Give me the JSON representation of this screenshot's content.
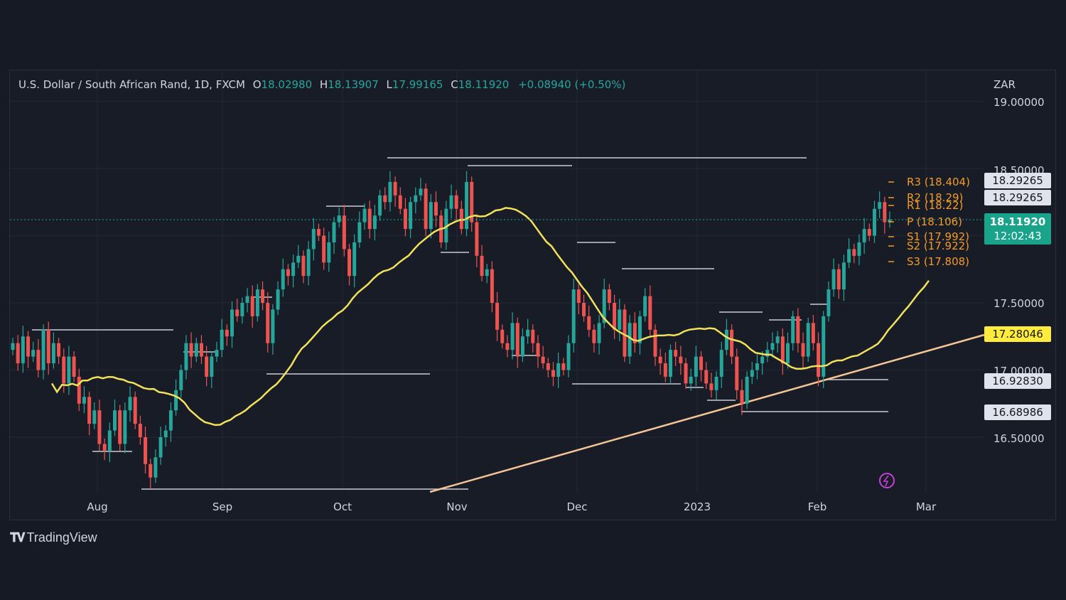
{
  "header": {
    "symbol": "U.S. Dollar / South African Rand, 1D, FXCM",
    "o_label": "O",
    "o_value": "18.02980",
    "h_label": "H",
    "h_value": "18.13907",
    "l_label": "L",
    "l_value": "17.99165",
    "c_label": "C",
    "c_value": "18.11920",
    "change": "+0.08940 (+0.50%)",
    "currency": "ZAR"
  },
  "footer": {
    "brand": "TradingView"
  },
  "colors": {
    "up": "#26a69a",
    "down": "#ef5350",
    "ma": "#f2e15b",
    "trend": "#f5c596",
    "pivot": "#f59a23",
    "bg": "#181c27"
  },
  "chart_data": {
    "type": "candlestick",
    "x_ticks": [
      "Aug",
      "Sep",
      "Oct",
      "Nov",
      "Dec",
      "2023",
      "Feb",
      "Mar"
    ],
    "y_ticks": [
      "19.00000",
      "18.50000",
      "17.50000",
      "17.00000",
      "16.50000"
    ],
    "ylim": [
      16.1,
      19.1
    ],
    "current_price": "18.11920",
    "countdown": "12:02:43",
    "price_badges": [
      "18.29265",
      "18.29265",
      "17.28046",
      "16.92830",
      "16.68986"
    ],
    "pivots": [
      {
        "label": "R3 (18.404)",
        "value": 18.404
      },
      {
        "label": "R2 (18.29)",
        "value": 18.29
      },
      {
        "label": "R1 (18.22)",
        "value": 18.22
      },
      {
        "label": "P (18.106)",
        "value": 18.106
      },
      {
        "label": "S1 (17.992)",
        "value": 17.992
      },
      {
        "label": "S2 (17.922)",
        "value": 17.922
      },
      {
        "label": "S3 (17.808)",
        "value": 17.808
      }
    ],
    "closes": [
      17.2,
      17.05,
      17.25,
      17.1,
      17.15,
      17.0,
      17.3,
      17.05,
      17.2,
      17.1,
      16.9,
      17.1,
      16.95,
      16.75,
      16.8,
      16.6,
      16.7,
      16.45,
      16.4,
      16.55,
      16.7,
      16.45,
      16.7,
      16.8,
      16.6,
      16.5,
      16.3,
      16.2,
      16.35,
      16.5,
      16.55,
      16.7,
      16.85,
      17.0,
      17.2,
      17.1,
      17.2,
      17.1,
      16.95,
      17.1,
      17.15,
      17.3,
      17.25,
      17.45,
      17.4,
      17.5,
      17.55,
      17.4,
      17.6,
      17.5,
      17.2,
      17.45,
      17.6,
      17.75,
      17.7,
      17.8,
      17.85,
      17.7,
      17.9,
      18.05,
      18.0,
      17.8,
      17.95,
      18.1,
      18.15,
      17.9,
      17.7,
      17.95,
      18.1,
      18.2,
      18.05,
      18.15,
      18.3,
      18.25,
      18.4,
      18.3,
      18.2,
      18.05,
      18.25,
      18.3,
      18.35,
      18.05,
      18.25,
      18.15,
      17.95,
      18.2,
      18.3,
      18.2,
      18.05,
      18.4,
      18.1,
      17.85,
      17.7,
      17.75,
      17.5,
      17.3,
      17.2,
      17.15,
      17.35,
      17.1,
      17.25,
      17.3,
      17.2,
      17.1,
      17.05,
      17.0,
      16.95,
      17.05,
      17.0,
      17.2,
      17.6,
      17.5,
      17.4,
      17.3,
      17.2,
      17.35,
      17.6,
      17.5,
      17.3,
      17.45,
      17.1,
      17.35,
      17.2,
      17.4,
      17.55,
      17.3,
      17.1,
      17.05,
      16.95,
      17.15,
      17.1,
      17.05,
      16.9,
      16.95,
      17.1,
      17.0,
      16.9,
      16.85,
      16.95,
      17.15,
      17.3,
      17.1,
      16.85,
      16.75,
      16.95,
      17.0,
      17.05,
      17.1,
      17.15,
      17.2,
      17.25,
      17.05,
      17.2,
      17.4,
      17.2,
      17.1,
      17.35,
      17.2,
      16.95,
      17.4,
      17.6,
      17.75,
      17.6,
      17.8,
      17.9,
      17.85,
      17.95,
      18.05,
      18.0,
      18.2,
      18.25,
      18.1,
      18.12
    ]
  }
}
